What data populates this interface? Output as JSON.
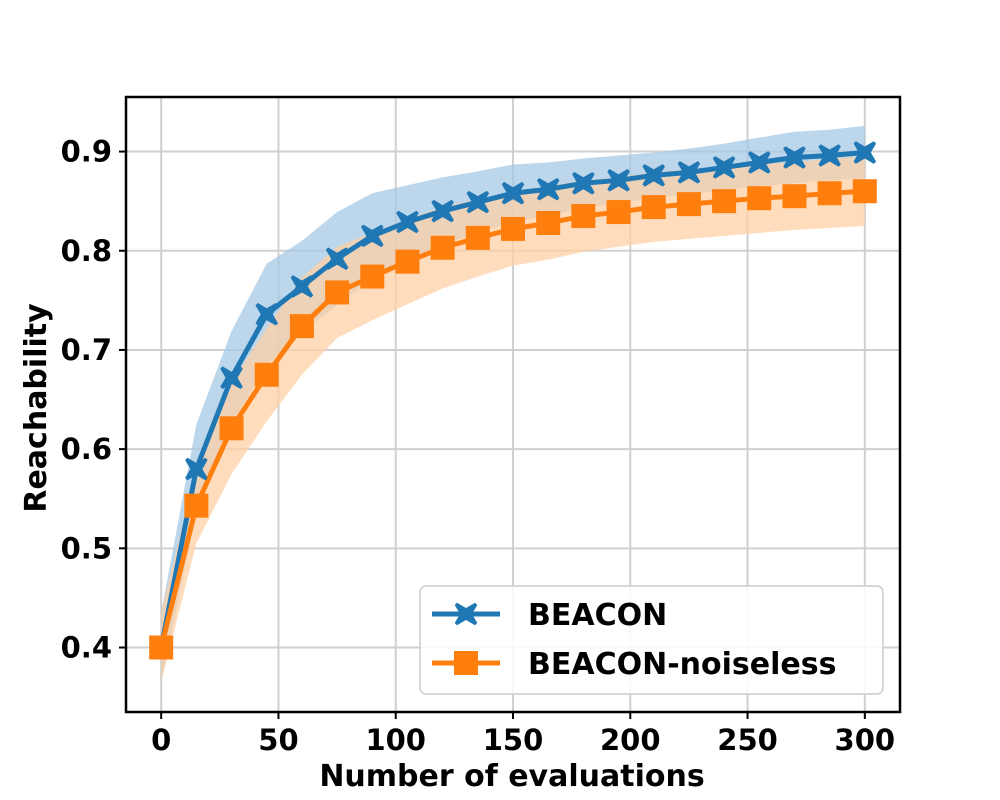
{
  "chart_data": {
    "type": "line",
    "title": "",
    "xlabel": "Number of evaluations",
    "ylabel": "Reachability",
    "xlim": [
      -15,
      315
    ],
    "ylim": [
      0.335,
      0.955
    ],
    "xticks": [
      0,
      50,
      100,
      150,
      200,
      250,
      300
    ],
    "yticks": [
      0.4,
      0.5,
      0.6,
      0.7,
      0.8,
      0.9
    ],
    "grid": true,
    "legend_position": "lower-right",
    "x": [
      0,
      15,
      30,
      45,
      60,
      75,
      90,
      105,
      120,
      135,
      150,
      165,
      180,
      195,
      210,
      225,
      240,
      255,
      270,
      285,
      300
    ],
    "series": [
      {
        "name": "BEACON",
        "color": "#1f77b4",
        "band_color": "#a6c8e4",
        "marker": "x",
        "values": [
          0.4,
          0.58,
          0.672,
          0.736,
          0.764,
          0.792,
          0.815,
          0.829,
          0.84,
          0.849,
          0.858,
          0.862,
          0.868,
          0.871,
          0.876,
          0.879,
          0.884,
          0.889,
          0.894,
          0.896,
          0.899
        ],
        "lower": [
          0.365,
          0.535,
          0.625,
          0.685,
          0.718,
          0.745,
          0.772,
          0.792,
          0.806,
          0.818,
          0.829,
          0.835,
          0.843,
          0.848,
          0.853,
          0.857,
          0.861,
          0.865,
          0.868,
          0.871,
          0.873
        ],
        "upper": [
          0.435,
          0.625,
          0.719,
          0.787,
          0.81,
          0.839,
          0.858,
          0.866,
          0.874,
          0.88,
          0.887,
          0.889,
          0.893,
          0.896,
          0.899,
          0.903,
          0.908,
          0.914,
          0.92,
          0.922,
          0.926
        ]
      },
      {
        "name": "BEACON-noiseless",
        "color": "#ff7f0e",
        "band_color": "#ffd0a6",
        "marker": "s",
        "values": [
          0.4,
          0.543,
          0.621,
          0.675,
          0.724,
          0.758,
          0.774,
          0.789,
          0.803,
          0.813,
          0.822,
          0.828,
          0.835,
          0.839,
          0.844,
          0.847,
          0.85,
          0.853,
          0.855,
          0.858,
          0.86
        ],
        "lower": [
          0.365,
          0.505,
          0.575,
          0.628,
          0.675,
          0.712,
          0.73,
          0.746,
          0.762,
          0.774,
          0.785,
          0.791,
          0.799,
          0.804,
          0.809,
          0.812,
          0.815,
          0.818,
          0.821,
          0.823,
          0.825
        ],
        "upper": [
          0.435,
          0.581,
          0.667,
          0.722,
          0.773,
          0.804,
          0.818,
          0.832,
          0.844,
          0.852,
          0.859,
          0.865,
          0.871,
          0.874,
          0.879,
          0.882,
          0.885,
          0.888,
          0.889,
          0.893,
          0.895
        ]
      }
    ]
  }
}
